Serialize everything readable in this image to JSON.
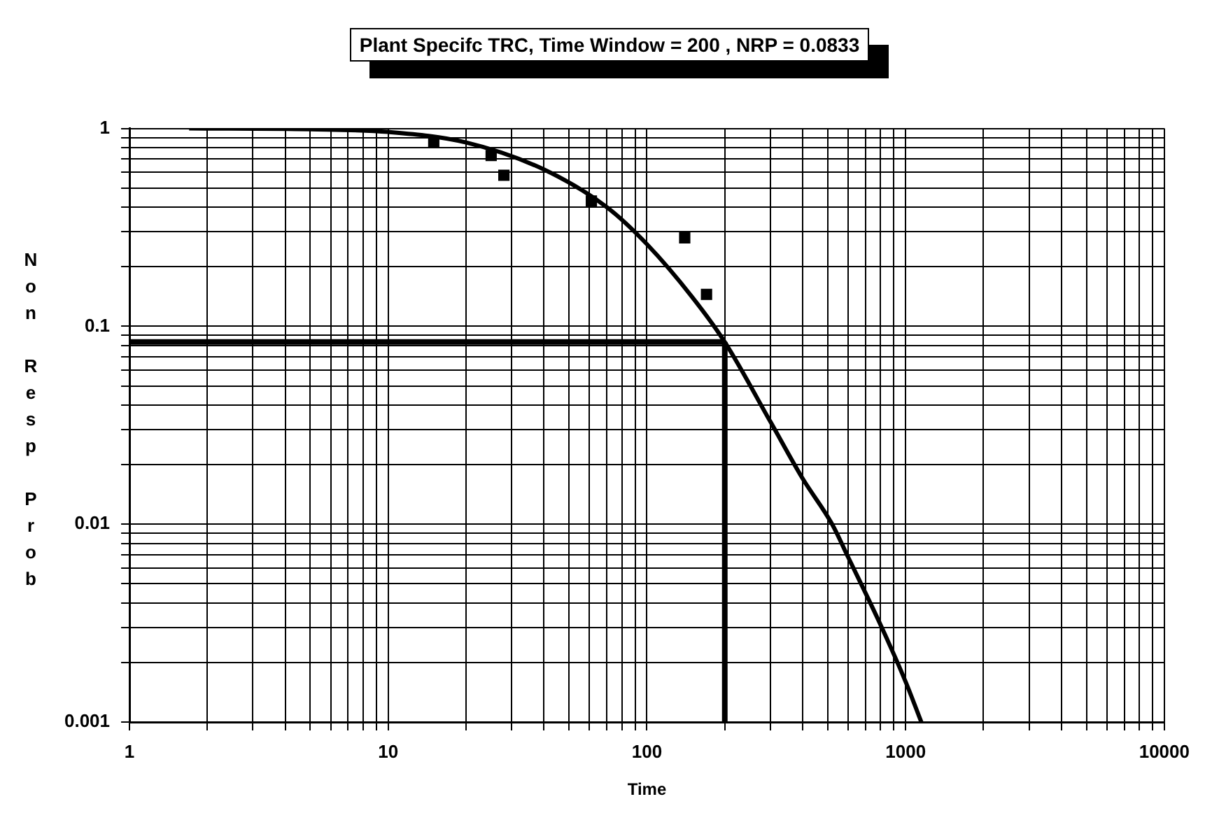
{
  "chart_data": {
    "type": "scatter",
    "title": "Plant Specifc TRC,  Time Window = 200 , NRP = 0.0833",
    "xlabel": "Time",
    "ylabel": "Non Resp Prob",
    "log": "xy",
    "xlim": [
      1,
      10000
    ],
    "ylim": [
      0.001,
      1
    ],
    "xticks": [
      1,
      10,
      100,
      1000,
      10000
    ],
    "yticks": [
      0.001,
      0.01,
      0.1,
      1
    ],
    "grid": true,
    "legend": false,
    "series": [
      {
        "type": "scatter",
        "color": "#000000",
        "marker": "square",
        "x": [
          15,
          25,
          28,
          61,
          140,
          170
        ],
        "values": [
          0.86,
          0.73,
          0.58,
          0.43,
          0.28,
          0.145
        ]
      },
      {
        "type": "line",
        "color": "#000000",
        "marker": "none",
        "line_style": "solid",
        "x": [
          1.7,
          5,
          10,
          20,
          40,
          70,
          100,
          150,
          200,
          300,
          400,
          520,
          600,
          800,
          1000,
          1150
        ],
        "values": [
          1,
          0.99,
          0.96,
          0.85,
          0.62,
          0.4,
          0.26,
          0.14,
          0.0833,
          0.033,
          0.017,
          0.01,
          0.0068,
          0.0031,
          0.0016,
          0.001
        ]
      }
    ],
    "ref_lines": [
      {
        "axis": "y",
        "value": 0.0833,
        "color": "#000000"
      },
      {
        "axis": "x",
        "value": 200,
        "color": "#000000"
      }
    ]
  }
}
